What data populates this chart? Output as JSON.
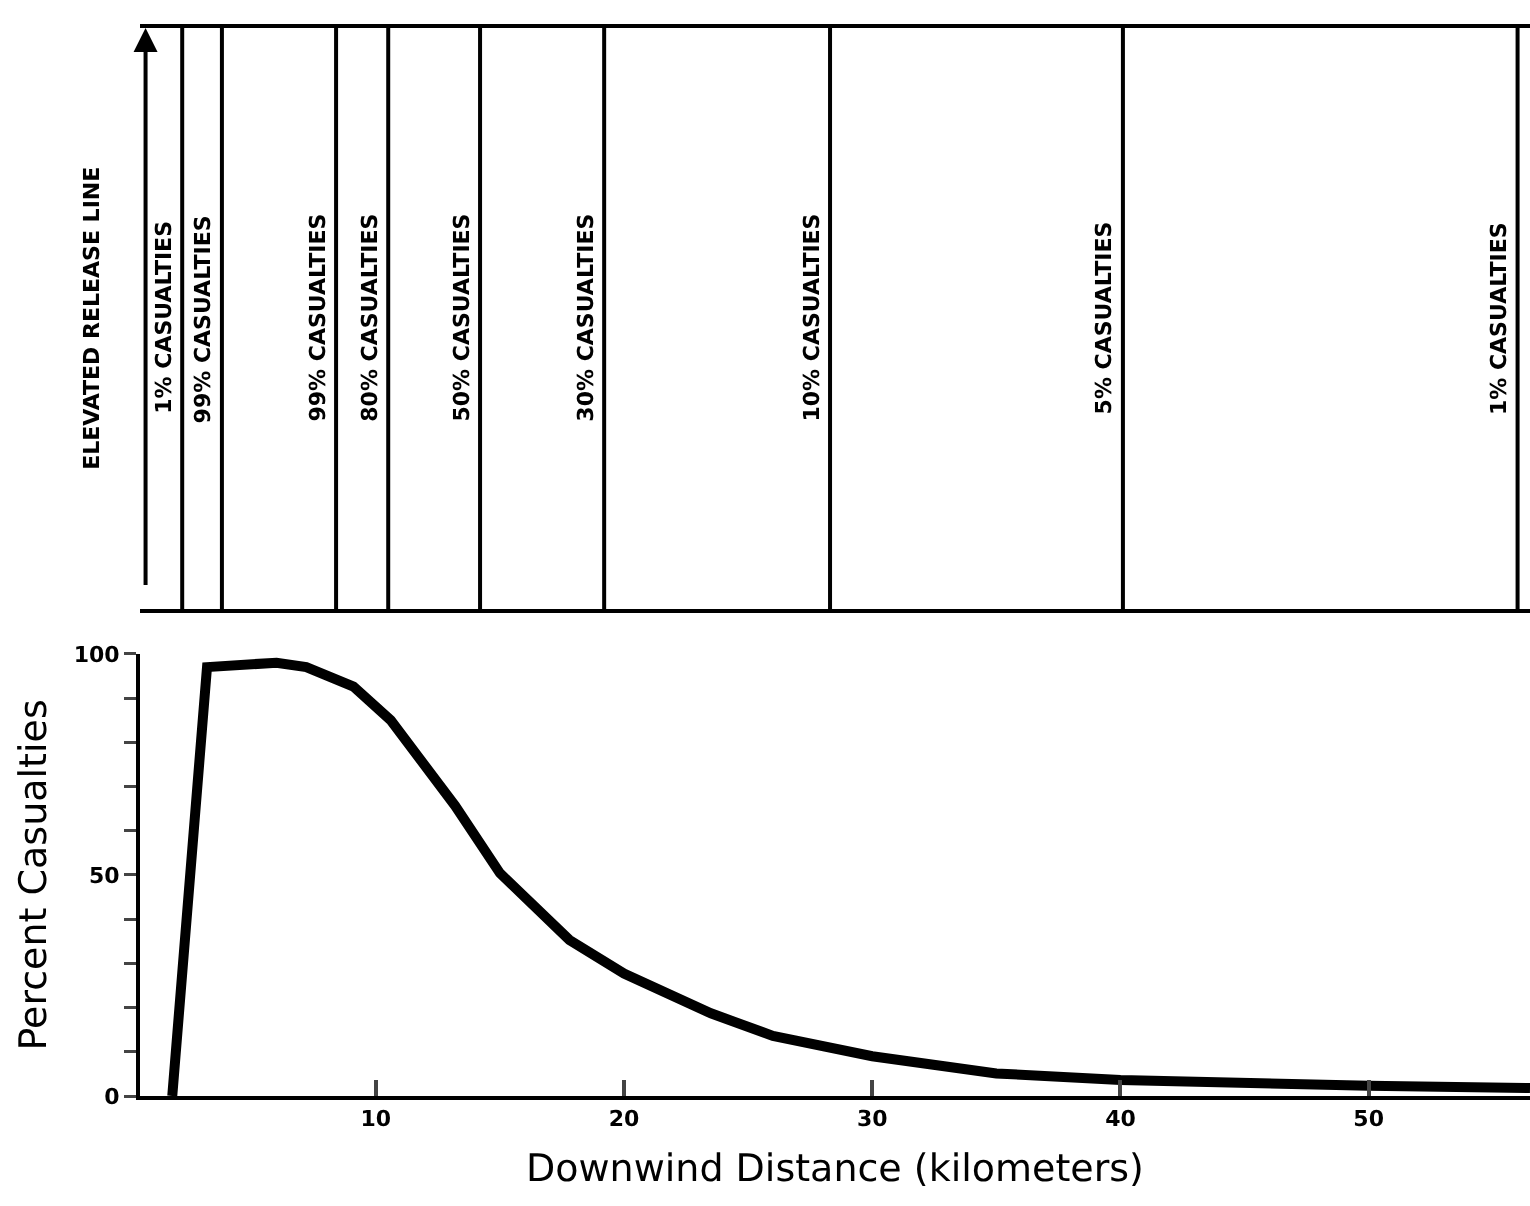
{
  "chart_data": {
    "type": "line",
    "xlabel": "Downwind Distance (kilometers)",
    "ylabel": "Percent Casualties",
    "grid": false,
    "marker": "none",
    "annotations": [
      "ELEVATED RELEASE LINE"
    ],
    "x": [
      1.8,
      3.2,
      6.0,
      7.2,
      9.1,
      10.6,
      13.2,
      15.0,
      17.8,
      20,
      23.5,
      26,
      30,
      35,
      40,
      50,
      56.5
    ],
    "series": [
      {
        "color": "#000000",
        "values": [
          0,
          97,
          98,
          97,
          92.6,
          85,
          65.6,
          50.4,
          35.3,
          27.7,
          18.7,
          13.6,
          9,
          5.1,
          3.6,
          2.3,
          1.8
        ]
      }
    ],
    "xlim": [
      0.5,
      56.5
    ],
    "xticks": [
      10,
      20,
      30,
      40,
      50
    ],
    "ylim": [
      0,
      100
    ],
    "yticks": [
      0,
      {
        "value": 10,
        "label": null
      },
      {
        "value": 20,
        "label": null
      },
      {
        "value": 30,
        "label": null
      },
      {
        "value": 40,
        "label": null
      },
      50,
      {
        "value": 60,
        "label": null
      },
      {
        "value": 70,
        "label": null
      },
      {
        "value": 80,
        "label": null
      },
      {
        "value": 90,
        "label": null
      },
      100
    ],
    "ref_lines": [
      {
        "axis": "x",
        "value": 2.2,
        "label": "1% CASUALTIES"
      },
      {
        "axis": "x",
        "value": 3.8,
        "label": "99% CASUALTIES"
      },
      {
        "axis": "x",
        "value": 8.4,
        "label": "99% CASUALTIES"
      },
      {
        "axis": "x",
        "value": 10.5,
        "label": "80% CASUALTIES"
      },
      {
        "axis": "x",
        "value": 14.2,
        "label": "50% CASUALTIES"
      },
      {
        "axis": "x",
        "value": 19.2,
        "label": "30% CASUALTIES"
      },
      {
        "axis": "x",
        "value": 28.3,
        "label": "10% CASUALTIES"
      },
      {
        "axis": "x",
        "value": 40.1,
        "label": "5% CASUALTIES"
      },
      {
        "axis": "x",
        "value": 56,
        "label": "1% CASUALTIES"
      }
    ]
  }
}
